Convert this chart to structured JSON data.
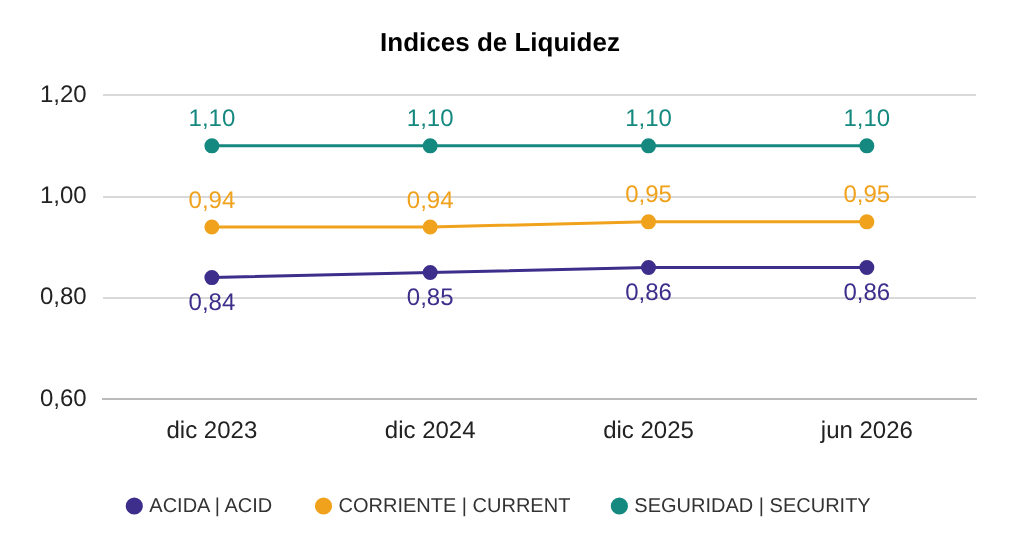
{
  "chart_data": {
    "type": "line",
    "title": "Indices de Liquidez",
    "categories": [
      "dic 2023",
      "dic 2024",
      "dic 2025",
      "jun 2026"
    ],
    "series": [
      {
        "name": "ACIDA | ACID",
        "color": "#3d2e8c",
        "values": [
          0.84,
          0.85,
          0.86,
          0.86
        ],
        "value_labels": [
          "0,84",
          "0,85",
          "0,86",
          "0,86"
        ]
      },
      {
        "name": "CORRIENTE | CURRENT",
        "color": "#f0a21c",
        "values": [
          0.94,
          0.94,
          0.95,
          0.95
        ],
        "value_labels": [
          "0,94",
          "0,94",
          "0,95",
          "0,95"
        ]
      },
      {
        "name": "SEGURIDAD | SECURITY",
        "color": "#15897f",
        "values": [
          1.1,
          1.1,
          1.1,
          1.1
        ],
        "value_labels": [
          "1,10",
          "1,10",
          "1,10",
          "1,10"
        ]
      }
    ],
    "ylim": [
      0.6,
      1.2
    ],
    "yticks": [
      {
        "value": 0.6,
        "label": "0,60"
      },
      {
        "value": 0.8,
        "label": "0,80"
      },
      {
        "value": 1.0,
        "label": "1,00"
      },
      {
        "value": 1.2,
        "label": "1,20"
      }
    ],
    "grid": "y",
    "legend": "bottom",
    "marker": "circle",
    "line_style": "solid"
  }
}
